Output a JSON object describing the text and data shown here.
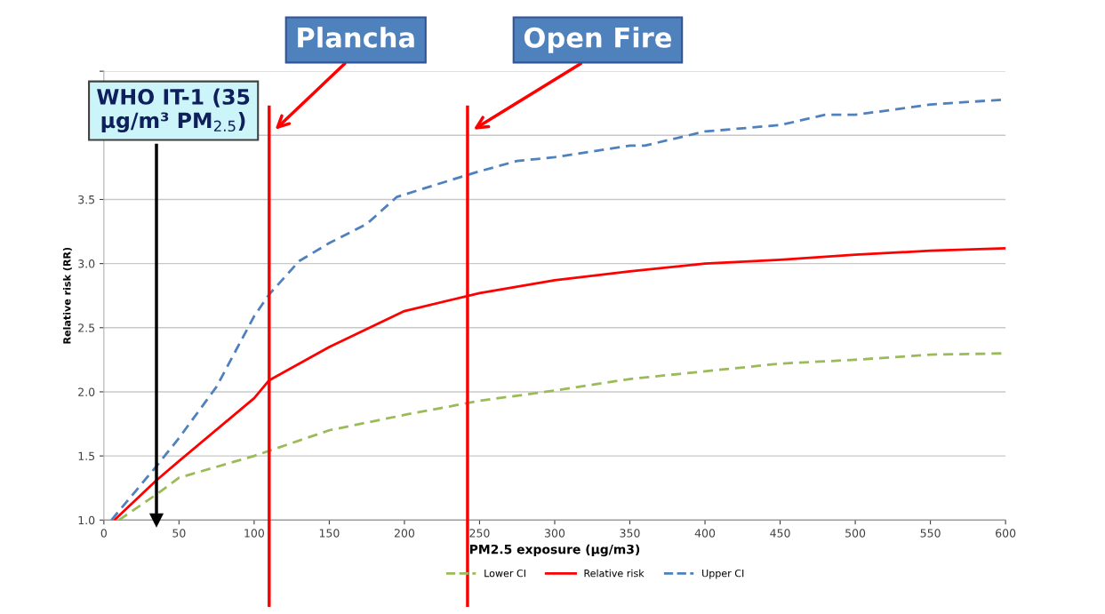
{
  "chart_data": {
    "type": "line",
    "xlabel": "PM2.5 exposure (µg/m3)",
    "ylabel": "Relative risk (RR)",
    "xlim": [
      0,
      600
    ],
    "xticks": [
      0,
      50,
      100,
      150,
      200,
      250,
      300,
      350,
      400,
      450,
      500,
      550,
      600
    ],
    "ylim": [
      1.0,
      4.5
    ],
    "yticks": [
      {
        "value": 1,
        "label": "1.0"
      },
      1.5,
      {
        "value": 2,
        "label": "2.0"
      },
      2.5,
      {
        "value": 3,
        "label": "3.0"
      },
      3.5,
      {
        "value": 4.0,
        "label": null
      },
      {
        "value": 4.5,
        "label": null
      }
    ],
    "grid": "y",
    "legend": "bottom",
    "marker": "none",
    "series": [
      {
        "name": "Lower CI",
        "color": "#9bbb59",
        "line_style": "dashed",
        "x": [
          10,
          35,
          50,
          100,
          150,
          200,
          250,
          300,
          350,
          400,
          450,
          500,
          550,
          600
        ],
        "values": [
          1.0,
          1.2,
          1.33,
          1.5,
          1.7,
          1.82,
          1.93,
          2.01,
          2.1,
          2.16,
          2.22,
          2.25,
          2.29,
          2.3
        ]
      },
      {
        "name": "Relative risk",
        "color": "#ff0000",
        "line_style": "solid",
        "x": [
          7,
          35,
          50,
          100,
          110,
          150,
          200,
          250,
          300,
          350,
          400,
          450,
          500,
          550,
          600
        ],
        "values": [
          1.0,
          1.31,
          1.46,
          1.95,
          2.09,
          2.35,
          2.63,
          2.77,
          2.87,
          2.94,
          3.0,
          3.03,
          3.07,
          3.1,
          3.12
        ]
      },
      {
        "name": "Upper CI",
        "color": "#4f81bd",
        "line_style": "dashed",
        "x": [
          5,
          35,
          50,
          75,
          100,
          110,
          130,
          150,
          175,
          195,
          225,
          250,
          275,
          300,
          350,
          360,
          400,
          450,
          480,
          500,
          550,
          600
        ],
        "values": [
          1.0,
          1.42,
          1.64,
          2.04,
          2.59,
          2.76,
          3.02,
          3.16,
          3.31,
          3.52,
          3.63,
          3.72,
          3.8,
          3.83,
          3.92,
          3.92,
          4.03,
          4.08,
          4.16,
          4.16,
          4.24,
          4.28
        ]
      }
    ],
    "ref_lines": [
      {
        "axis": "x",
        "value": 110,
        "label": "Plancha",
        "color": "#ff0000",
        "line_style": "solid"
      },
      {
        "axis": "x",
        "value": 242,
        "label": "Open Fire",
        "color": "#ff0000",
        "line_style": "solid"
      },
      {
        "axis": "x",
        "value": 35,
        "label": "WHO IT-1 (35\nµg/m³ PM$_{2.5}$)",
        "color": "#000000",
        "line_style": "solid"
      }
    ]
  }
}
